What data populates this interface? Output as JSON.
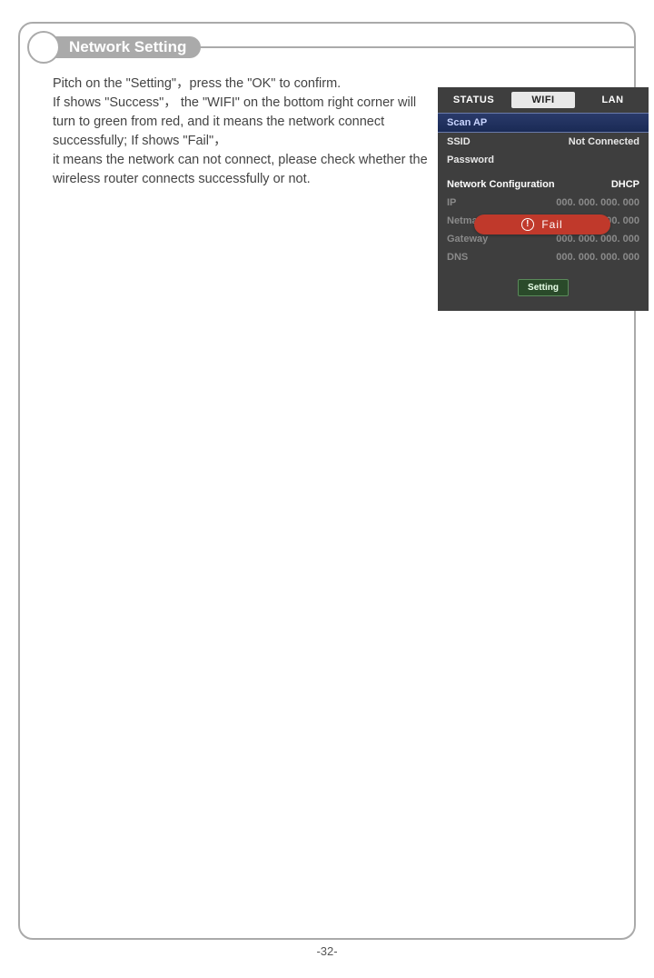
{
  "header": {
    "title": "Network Setting"
  },
  "instructions": {
    "text": "Pitch on the \"Setting\"，press the \"OK\" to confirm.\nIf shows \"Success\"， the \"WIFI\"  on the bottom right corner will turn to green from red, and it means the network connect successfully; If shows \"Fail\"，\nit means the network can not connect, please check whether the wireless router connects successfully or not."
  },
  "panel": {
    "tabs": {
      "status": "STATUS",
      "wifi": "WIFI",
      "lan": "LAN"
    },
    "scan_ap": "Scan AP",
    "ssid": {
      "label": "SSID",
      "value": "Not Connected"
    },
    "password": {
      "label": "Password",
      "value": ""
    },
    "net_config": {
      "label": "Network Configuration",
      "value": "DHCP"
    },
    "ip": {
      "label": "IP",
      "value": "000. 000. 000. 000"
    },
    "netmask": {
      "label": "Netmask",
      "value": "000. 000. 000. 000"
    },
    "gateway": {
      "label": "Gateway",
      "value": "000. 000. 000. 000"
    },
    "dns": {
      "label": "DNS",
      "value": "000. 000. 000. 000"
    },
    "setting_button": "Setting",
    "toast": {
      "text": "Fail",
      "color": "#c0392b"
    }
  },
  "page_number": "-32-",
  "colors": {
    "frame_border": "#aaaaaa",
    "header_pill_bg": "#aaaaaa",
    "body_text": "#444444",
    "panel_bg": "#3e3e3e",
    "tab_active_bg": "#e8e8e8",
    "scan_ap_bg_top": "#2a3a6a",
    "scan_ap_bg_bottom": "#1a2a55",
    "dim_text": "#8a8a8a",
    "setting_btn_bg": "#2a4a2a",
    "setting_btn_border": "#5a8a5a",
    "fail_bg": "#c0392b"
  }
}
